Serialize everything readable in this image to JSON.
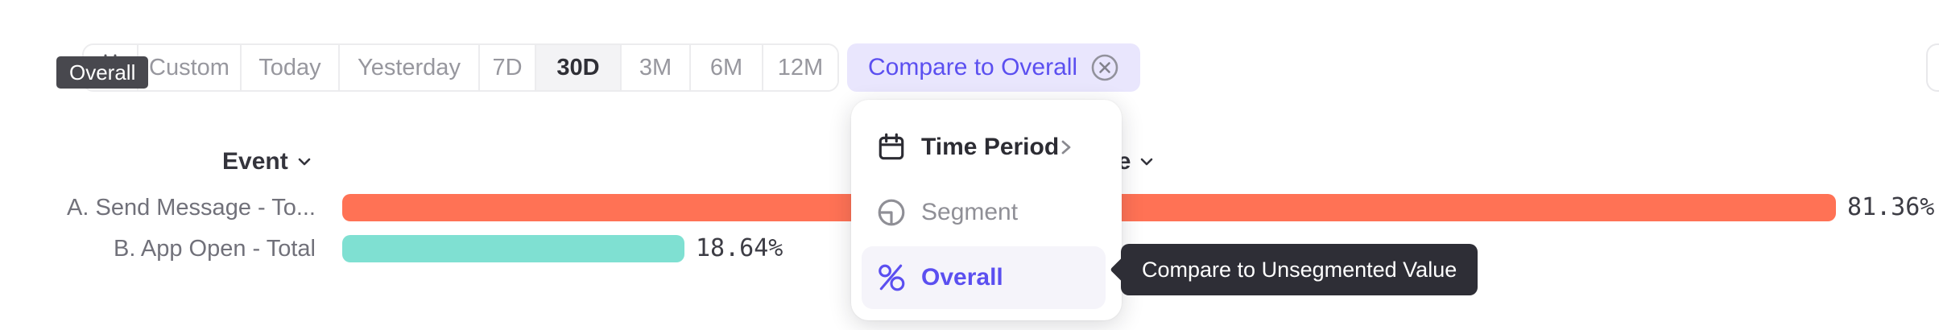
{
  "overall_badge": {
    "label": "Overall"
  },
  "toolbar": {
    "buttons": [
      {
        "label": "Custom"
      },
      {
        "label": "Today"
      },
      {
        "label": "Yesterday"
      },
      {
        "label": "7D"
      },
      {
        "label": "30D"
      },
      {
        "label": "3M"
      },
      {
        "label": "6M"
      },
      {
        "label": "12M"
      }
    ],
    "selected_button": "30D",
    "compare_button": {
      "label": "Compare to Overall"
    }
  },
  "table": {
    "columns": [
      {
        "label": "Event"
      },
      {
        "label": "Value"
      }
    ]
  },
  "chart_data": {
    "type": "bar",
    "orientation": "horizontal",
    "categories": [
      "A. Send Message - To...",
      "B. App Open - Total"
    ],
    "values": [
      81.36,
      18.64
    ],
    "value_labels": [
      "81.36%",
      "18.64%"
    ],
    "series_colors": [
      "#FF7255",
      "#7FE0D2"
    ],
    "xlim": [
      0,
      81.36
    ],
    "title": "",
    "xlabel": "",
    "ylabel": "",
    "grid": false,
    "legend": false
  },
  "menu": {
    "items": [
      {
        "label": "Time Period",
        "icon": "calendar-icon",
        "has_submenu": true,
        "state": "default"
      },
      {
        "label": "Segment",
        "icon": "segment-icon",
        "state": "disabled"
      },
      {
        "label": "Overall",
        "icon": "percent-icon",
        "state": "selected"
      }
    ]
  },
  "tooltip": {
    "label": "Compare to Unsegmented Value"
  },
  "colors": {
    "accent_purple": "#5B4FF0",
    "compare_button_bg": "#E9E6FD",
    "bar_orange": "#FF7255",
    "bar_teal": "#7FE0D2",
    "tooltip_bg": "#2E2E36",
    "badge_bg": "#48484E",
    "menu_highlight_bg": "#F5F4FA",
    "selected_segment_bg": "#F3F3F5"
  }
}
